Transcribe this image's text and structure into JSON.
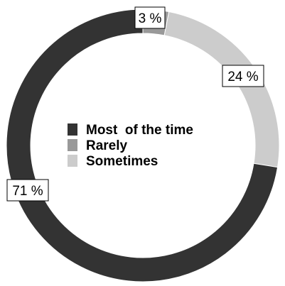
{
  "chart_data": {
    "type": "pie",
    "variant": "donut",
    "categories": [
      "Most  of the time",
      "Rarely",
      "Sometimes"
    ],
    "values": [
      71,
      3,
      24
    ],
    "data_labels": [
      "71 %",
      "3 %",
      "24 %"
    ],
    "colors": [
      "#333333",
      "#999999",
      "#cccccc"
    ],
    "legend": {
      "placement": "center",
      "entries": [
        "Most  of the time",
        "Rarely",
        "Sometimes"
      ]
    },
    "title": ""
  }
}
